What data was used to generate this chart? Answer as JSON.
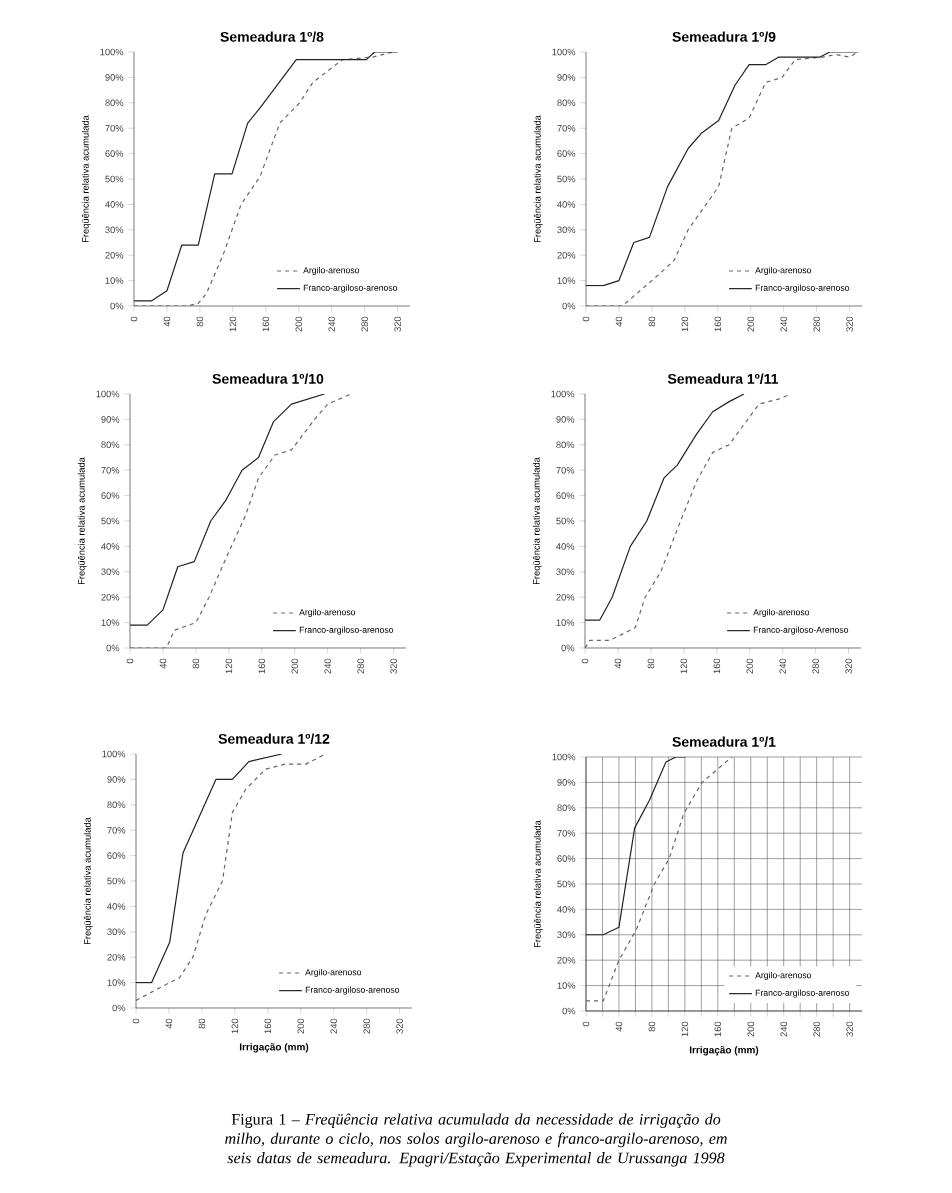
{
  "chart_data": [
    {
      "type": "line",
      "title": "Semeadura 1º/8",
      "ylabel": "Freqüência relativa acumulada",
      "xlim": [
        0,
        335
      ],
      "ylim": [
        0,
        100
      ],
      "xticks": [
        0,
        40,
        80,
        120,
        160,
        200,
        240,
        280,
        320
      ],
      "yticks": [
        {
          "value": 0,
          "label": "0%"
        },
        {
          "value": 10,
          "label": "10%"
        },
        {
          "value": 20,
          "label": "20%"
        },
        {
          "value": 30,
          "label": "30%"
        },
        {
          "value": 40,
          "label": "40%"
        },
        {
          "value": 50,
          "label": "50%"
        },
        {
          "value": 60,
          "label": "60%"
        },
        {
          "value": 70,
          "label": "70%"
        },
        {
          "value": 80,
          "label": "80%"
        },
        {
          "value": 90,
          "label": "90%"
        },
        {
          "value": 100,
          "label": "100%"
        }
      ],
      "legend": "bottom right",
      "series": [
        {
          "name": "Argilo-arenoso",
          "color": "#666666",
          "line_style": "dashed",
          "x": [
            0,
            64,
            78,
            88,
            108,
            130,
            153,
            177,
            201,
            217,
            253,
            290,
            314
          ],
          "values": [
            0,
            0,
            1,
            5,
            20,
            40,
            51,
            72,
            80,
            88,
            97,
            98,
            100
          ]
        },
        {
          "name": "Franco-argiloso-arenoso",
          "color": "#222222",
          "line_style": "solid",
          "x": [
            0,
            21,
            40,
            58,
            78,
            98,
            119,
            138,
            153,
            197,
            282,
            292,
            320
          ],
          "values": [
            2,
            2,
            6,
            24,
            24,
            52,
            52,
            72,
            78,
            97,
            97,
            100,
            100
          ]
        }
      ]
    },
    {
      "type": "line",
      "title": "Semeadura 1º/9",
      "ylabel": "Freqüência relativa acumulada",
      "xlim": [
        0,
        335
      ],
      "ylim": [
        0,
        100
      ],
      "xticks": [
        0,
        40,
        80,
        120,
        160,
        200,
        240,
        280,
        320
      ],
      "yticks": [
        {
          "value": 0,
          "label": "0%"
        },
        {
          "value": 10,
          "label": "10%"
        },
        {
          "value": 20,
          "label": "20%"
        },
        {
          "value": 30,
          "label": "30%"
        },
        {
          "value": 40,
          "label": "40%"
        },
        {
          "value": 50,
          "label": "50%"
        },
        {
          "value": 60,
          "label": "60%"
        },
        {
          "value": 70,
          "label": "70%"
        },
        {
          "value": 80,
          "label": "80%"
        },
        {
          "value": 90,
          "label": "90%"
        },
        {
          "value": 100,
          "label": "100%"
        }
      ],
      "legend": "bottom right",
      "series": [
        {
          "name": "Argilo-arenoso",
          "color": "#666666",
          "line_style": "dashed",
          "x": [
            0,
            44,
            62,
            87,
            107,
            124,
            161,
            177,
            198,
            218,
            238,
            254,
            287,
            304,
            320,
            330
          ],
          "values": [
            0,
            0,
            5,
            12,
            18,
            30,
            47,
            70,
            74,
            88,
            90,
            97,
            98,
            99,
            98,
            100
          ]
        },
        {
          "name": "Franco-argiloso-arenoso",
          "color": "#222222",
          "line_style": "solid",
          "x": [
            0,
            21,
            40,
            58,
            77,
            99,
            124,
            140,
            161,
            181,
            198,
            218,
            234,
            284,
            296,
            330
          ],
          "values": [
            8,
            8,
            10,
            25,
            27,
            47,
            62,
            68,
            73,
            87,
            95,
            95,
            98,
            98,
            100,
            100
          ]
        }
      ]
    },
    {
      "type": "line",
      "title": "Semeadura 1º/10",
      "ylabel": "Freqüência relativa acumulada",
      "xlim": [
        0,
        335
      ],
      "ylim": [
        0,
        100
      ],
      "xticks": [
        0,
        40,
        80,
        120,
        160,
        200,
        240,
        280,
        320
      ],
      "yticks": [
        {
          "value": 0,
          "label": "0%"
        },
        {
          "value": 10,
          "label": "10%"
        },
        {
          "value": 20,
          "label": "20%"
        },
        {
          "value": 30,
          "label": "30%"
        },
        {
          "value": 40,
          "label": "40%"
        },
        {
          "value": 50,
          "label": "50%"
        },
        {
          "value": 60,
          "label": "60%"
        },
        {
          "value": 70,
          "label": "70%"
        },
        {
          "value": 80,
          "label": "80%"
        },
        {
          "value": 90,
          "label": "90%"
        },
        {
          "value": 100,
          "label": "100%"
        }
      ],
      "legend": "bottom right",
      "series": [
        {
          "name": "Argilo-arenoso",
          "color": "#666666",
          "line_style": "dashed",
          "x": [
            0,
            44,
            54,
            80,
            96,
            116,
            140,
            156,
            176,
            196,
            224,
            240,
            268
          ],
          "values": [
            0,
            0,
            7,
            10,
            20,
            35,
            52,
            67,
            76,
            78,
            90,
            96,
            100
          ]
        },
        {
          "name": "Franco-argiloso-arenoso",
          "color": "#222222",
          "line_style": "solid",
          "x": [
            0,
            21,
            40,
            58,
            78,
            98,
            116,
            136,
            156,
            174,
            196,
            216,
            236
          ],
          "values": [
            9,
            9,
            15,
            32,
            34,
            50,
            58,
            70,
            75,
            89,
            96,
            98,
            100
          ]
        }
      ]
    },
    {
      "type": "line",
      "title": "Semeadura 1º/11",
      "ylabel": "Freqüência relativa acumulada",
      "xlim": [
        0,
        335
      ],
      "ylim": [
        0,
        100
      ],
      "xticks": [
        0,
        40,
        80,
        120,
        160,
        200,
        240,
        280,
        320
      ],
      "yticks": [
        {
          "value": 0,
          "label": "0%"
        },
        {
          "value": 10,
          "label": "10%"
        },
        {
          "value": 20,
          "label": "20%"
        },
        {
          "value": 30,
          "label": "30%"
        },
        {
          "value": 40,
          "label": "40%"
        },
        {
          "value": 50,
          "label": "50%"
        },
        {
          "value": 60,
          "label": "60%"
        },
        {
          "value": 70,
          "label": "70%"
        },
        {
          "value": 80,
          "label": "80%"
        },
        {
          "value": 90,
          "label": "90%"
        },
        {
          "value": 100,
          "label": "100%"
        }
      ],
      "legend": "bottom right",
      "series": [
        {
          "name": "Argilo-arenoso",
          "color": "#666666",
          "line_style": "dashed",
          "x": [
            0,
            6,
            30,
            61,
            73,
            92,
            116,
            136,
            155,
            175,
            211,
            235,
            250
          ],
          "values": [
            0,
            3,
            3,
            8,
            20,
            30,
            50,
            66,
            77,
            80,
            96,
            98,
            100
          ]
        },
        {
          "name": "Franco-argiloso-Arenoso",
          "color": "#222222",
          "line_style": "solid",
          "x": [
            0,
            18,
            33,
            55,
            75,
            96,
            112,
            135,
            155,
            175,
            193
          ],
          "values": [
            11,
            11,
            20,
            40,
            50,
            67,
            72,
            84,
            93,
            97,
            100
          ]
        }
      ]
    },
    {
      "type": "line",
      "title": "Semeadura 1º/12",
      "xlabel": "Irrigação (mm)",
      "ylabel": "Freqüência relativa acumulada",
      "xlim": [
        0,
        335
      ],
      "ylim": [
        0,
        100
      ],
      "xticks": [
        0,
        40,
        80,
        120,
        160,
        200,
        240,
        280,
        320
      ],
      "yticks": [
        {
          "value": 0,
          "label": "0%"
        },
        {
          "value": 10,
          "label": "10%"
        },
        {
          "value": 20,
          "label": "20%"
        },
        {
          "value": 30,
          "label": "30%"
        },
        {
          "value": 40,
          "label": "40%"
        },
        {
          "value": 50,
          "label": "50%"
        },
        {
          "value": 60,
          "label": "60%"
        },
        {
          "value": 70,
          "label": "70%"
        },
        {
          "value": 80,
          "label": "80%"
        },
        {
          "value": 90,
          "label": "90%"
        },
        {
          "value": 100,
          "label": "100%"
        }
      ],
      "legend": "bottom right",
      "series": [
        {
          "name": "Argilo-arenoso",
          "color": "#666666",
          "line_style": "dashed",
          "x": [
            0,
            29,
            53,
            69,
            85,
            105,
            117,
            133,
            157,
            181,
            206,
            230
          ],
          "values": [
            3,
            8,
            12,
            20,
            37,
            50,
            77,
            86,
            94,
            96,
            96,
            100
          ]
        },
        {
          "name": "Franco-argiloso-arenoso",
          "color": "#222222",
          "line_style": "solid",
          "x": [
            0,
            19,
            41,
            57,
            97,
            117,
            137,
            177
          ],
          "values": [
            10,
            10,
            26,
            61,
            90,
            90,
            97,
            100
          ]
        }
      ]
    },
    {
      "type": "line",
      "title": "Semeadura 1º/1",
      "xlabel": "Irrigação (mm)",
      "ylabel": "Freqüência relativa acumulada",
      "xlim": [
        0,
        335
      ],
      "ylim": [
        0,
        100
      ],
      "grid": true,
      "xticks": [
        0,
        {
          "value": 20,
          "label": null
        },
        40,
        {
          "value": 60,
          "label": null
        },
        80,
        {
          "value": 100,
          "label": null
        },
        120,
        {
          "value": 140,
          "label": null
        },
        160,
        {
          "value": 180,
          "label": null
        },
        200,
        {
          "value": 220,
          "label": null
        },
        240,
        {
          "value": 260,
          "label": null
        },
        280,
        {
          "value": 300,
          "label": null
        },
        320
      ],
      "yticks": [
        {
          "value": 0,
          "label": "0%"
        },
        {
          "value": 10,
          "label": "10%"
        },
        {
          "value": 20,
          "label": "20%"
        },
        {
          "value": 30,
          "label": "30%"
        },
        {
          "value": 40,
          "label": "40%"
        },
        {
          "value": 50,
          "label": "50%"
        },
        {
          "value": 60,
          "label": "60%"
        },
        {
          "value": 70,
          "label": "70%"
        },
        {
          "value": 80,
          "label": "80%"
        },
        {
          "value": 90,
          "label": "90%"
        },
        {
          "value": 100,
          "label": "100%"
        }
      ],
      "legend": "bottom right",
      "annotations": [
        "Figura 1 – *Freqüência relativa acumulada da necessidade de irrigação do milho, durante o ciclo, nos solos argilo-arenoso e franco-argilo-arenoso, em seis datas de semeadura. Epagri/Estação Experimental de Urussanga 1998*"
      ],
      "series": [
        {
          "name": "Argilo-arenoso",
          "color": "#666666",
          "line_style": "dashed",
          "x": [
            0,
            21,
            40,
            61,
            83,
            101,
            119,
            141,
            177
          ],
          "values": [
            4,
            4,
            20,
            32,
            50,
            60,
            78,
            90,
            100
          ]
        },
        {
          "name": "Franco-argiloso-arenoso",
          "color": "#222222",
          "line_style": "solid",
          "x": [
            0,
            21,
            40,
            59,
            77,
            97,
            109,
            121
          ],
          "values": [
            30,
            30,
            33,
            72,
            83,
            98,
            100,
            100
          ]
        }
      ]
    }
  ]
}
